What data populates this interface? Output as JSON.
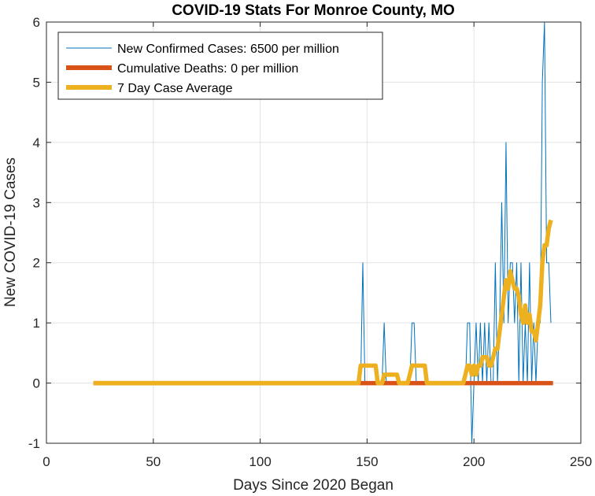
{
  "chart_data": {
    "type": "line",
    "title": "COVID-19 Stats For Monroe County, MO",
    "xlabel": "Days Since 2020 Began",
    "ylabel": "New COVID-19 Cases",
    "xlim": [
      0,
      250
    ],
    "ylim": [
      -1,
      6
    ],
    "xticks": [
      0,
      50,
      100,
      150,
      200,
      250
    ],
    "yticks": [
      -1,
      0,
      1,
      2,
      3,
      4,
      5,
      6
    ],
    "grid": true,
    "legend_position": "top-left",
    "series": [
      {
        "name": "New Confirmed Cases: 6500 per million",
        "color": "#0072BD",
        "style": "thin",
        "points": [
          [
            22,
            0
          ],
          [
            147,
            0
          ],
          [
            148,
            2
          ],
          [
            149,
            0
          ],
          [
            157,
            0
          ],
          [
            158,
            1
          ],
          [
            159,
            0
          ],
          [
            170,
            0
          ],
          [
            171,
            1
          ],
          [
            172,
            1
          ],
          [
            173,
            0
          ],
          [
            196,
            0
          ],
          [
            197,
            1
          ],
          [
            198,
            1
          ],
          [
            199,
            -1
          ],
          [
            200,
            0
          ],
          [
            201,
            1
          ],
          [
            202,
            0
          ],
          [
            203,
            1
          ],
          [
            204,
            0
          ],
          [
            205,
            1
          ],
          [
            206,
            0
          ],
          [
            207,
            1
          ],
          [
            208,
            0
          ],
          [
            209,
            0
          ],
          [
            210,
            2
          ],
          [
            211,
            0
          ],
          [
            212,
            1
          ],
          [
            213,
            3
          ],
          [
            214,
            1
          ],
          [
            215,
            4
          ],
          [
            216,
            1
          ],
          [
            217,
            2
          ],
          [
            218,
            2
          ],
          [
            219,
            1
          ],
          [
            220,
            2
          ],
          [
            221,
            0
          ],
          [
            222,
            2
          ],
          [
            223,
            0
          ],
          [
            224,
            1
          ],
          [
            225,
            0
          ],
          [
            226,
            2
          ],
          [
            227,
            0
          ],
          [
            228,
            1
          ],
          [
            229,
            0
          ],
          [
            230,
            1
          ],
          [
            231,
            1
          ],
          [
            232,
            5
          ],
          [
            233,
            6
          ],
          [
            234,
            2
          ],
          [
            235,
            2
          ],
          [
            236,
            1
          ]
        ]
      },
      {
        "name": "Cumulative Deaths: 0 per million",
        "color": "#D95319",
        "style": "thick",
        "points": [
          [
            22,
            0
          ],
          [
            237,
            0
          ]
        ]
      },
      {
        "name": "7 Day Case Average",
        "color": "#EDB120",
        "style": "thick",
        "points": [
          [
            22,
            0
          ],
          [
            146,
            0
          ],
          [
            147,
            0.29
          ],
          [
            154,
            0.29
          ],
          [
            155,
            0
          ],
          [
            157,
            0
          ],
          [
            158,
            0.14
          ],
          [
            164,
            0.14
          ],
          [
            165,
            0
          ],
          [
            169,
            0
          ],
          [
            170,
            0.14
          ],
          [
            171,
            0.29
          ],
          [
            177,
            0.29
          ],
          [
            178,
            0
          ],
          [
            195,
            0
          ],
          [
            196,
            0.14
          ],
          [
            197,
            0.29
          ],
          [
            198,
            0.29
          ],
          [
            199,
            0.14
          ],
          [
            200,
            0.29
          ],
          [
            201,
            0.14
          ],
          [
            202,
            0.29
          ],
          [
            203,
            0.29
          ],
          [
            204,
            0.43
          ],
          [
            205,
            0.43
          ],
          [
            206,
            0.43
          ],
          [
            207,
            0.29
          ],
          [
            208,
            0.29
          ],
          [
            209,
            0.43
          ],
          [
            210,
            0.57
          ],
          [
            211,
            0.57
          ],
          [
            212,
            0.86
          ],
          [
            213,
            1.14
          ],
          [
            214,
            1.43
          ],
          [
            215,
            1.71
          ],
          [
            216,
            1.57
          ],
          [
            217,
            1.86
          ],
          [
            218,
            1.71
          ],
          [
            219,
            1.57
          ],
          [
            220,
            1.57
          ],
          [
            221,
            1.43
          ],
          [
            222,
            1.14
          ],
          [
            223,
            1.0
          ],
          [
            224,
            1.29
          ],
          [
            225,
            1.0
          ],
          [
            226,
            1.14
          ],
          [
            227,
            0.86
          ],
          [
            228,
            0.86
          ],
          [
            229,
            0.71
          ],
          [
            230,
            1.0
          ],
          [
            231,
            1.29
          ],
          [
            232,
            2.0
          ],
          [
            233,
            2.29
          ],
          [
            234,
            2.29
          ],
          [
            235,
            2.57
          ],
          [
            236,
            2.71
          ]
        ]
      }
    ]
  }
}
